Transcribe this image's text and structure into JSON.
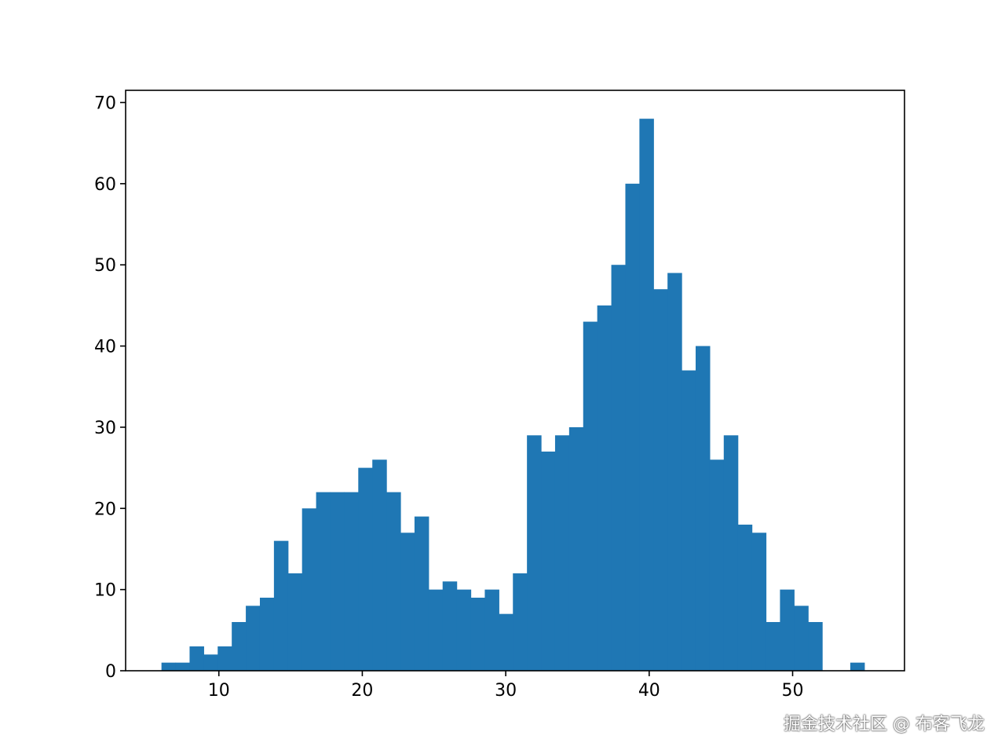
{
  "chart_data": {
    "type": "bar",
    "title": "",
    "xlabel": "",
    "ylabel": "",
    "bin_start": 5.999,
    "bin_width": 0.98,
    "values": [
      1,
      1,
      3,
      2,
      3,
      6,
      8,
      9,
      16,
      12,
      20,
      22,
      22,
      22,
      25,
      26,
      22,
      17,
      19,
      10,
      11,
      10,
      9,
      10,
      7,
      12,
      29,
      27,
      29,
      30,
      43,
      45,
      50,
      60,
      68,
      47,
      49,
      37,
      40,
      26,
      29,
      18,
      17,
      6,
      10,
      8,
      6,
      0,
      0,
      1
    ],
    "xlim": [
      3.5,
      57.8
    ],
    "ylim": [
      0,
      71.5
    ],
    "xticks": [
      10,
      20,
      30,
      40,
      50
    ],
    "yticks": [
      0,
      10,
      20,
      30,
      40,
      50,
      60,
      70
    ],
    "grid": false,
    "bar_color": "#1f77b4"
  },
  "watermark": "掘金技术社区 @ 布客飞龙"
}
